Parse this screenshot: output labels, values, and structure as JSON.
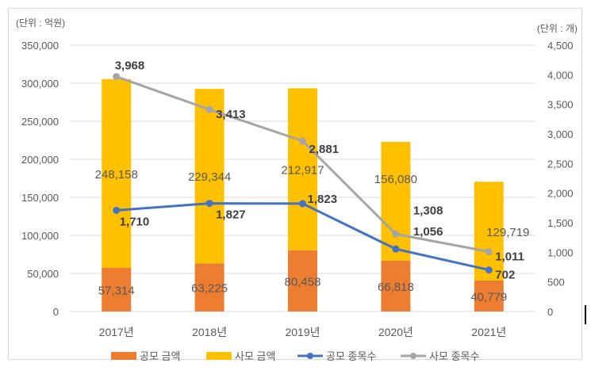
{
  "chart_data": {
    "type": "bar",
    "categories": [
      "2017년",
      "2018년",
      "2019년",
      "2020년",
      "2021년"
    ],
    "left_unit_label": "(단위 : 억원)",
    "right_unit_label": "(단위 : 개)",
    "left_ylim": [
      0,
      350000
    ],
    "left_ticks": [
      "0",
      "50,000",
      "100,000",
      "150,000",
      "200,000",
      "250,000",
      "300,000",
      "350,000"
    ],
    "right_ylim": [
      0,
      4500
    ],
    "right_ticks": [
      "0",
      "500",
      "1,000",
      "1,500",
      "2,000",
      "2,500",
      "3,000",
      "3,500",
      "4,000",
      "4,500"
    ],
    "grid": true,
    "legend_position": "bottom",
    "series": [
      {
        "name": "공모 금액",
        "type": "bar",
        "stack": true,
        "axis": "left",
        "color": "#ED7D31",
        "values": [
          57314,
          63225,
          80458,
          66818,
          40779
        ],
        "labels": [
          "57,314",
          "63,225",
          "80,458",
          "66,818",
          "40,779"
        ]
      },
      {
        "name": "사모 금액",
        "type": "bar",
        "stack": true,
        "axis": "left",
        "color": "#FFC000",
        "values": [
          248158,
          229344,
          212917,
          156080,
          129719
        ],
        "labels": [
          "248,158",
          "229,344",
          "212,917",
          "156,080",
          "129,719"
        ]
      },
      {
        "name": "공모 종목수",
        "type": "line",
        "axis": "right",
        "color": "#4472C4",
        "values": [
          1710,
          1827,
          1823,
          1056,
          702
        ],
        "labels": [
          "1,710",
          "1,827",
          "1,823",
          "1,056",
          "702"
        ]
      },
      {
        "name": "사모 종목수",
        "type": "line",
        "axis": "right",
        "color": "#A5A5A5",
        "values": [
          3968,
          3413,
          2881,
          1308,
          1011
        ],
        "labels": [
          "3,968",
          "3,413",
          "2,881",
          "1,308",
          "1,011"
        ]
      }
    ]
  }
}
